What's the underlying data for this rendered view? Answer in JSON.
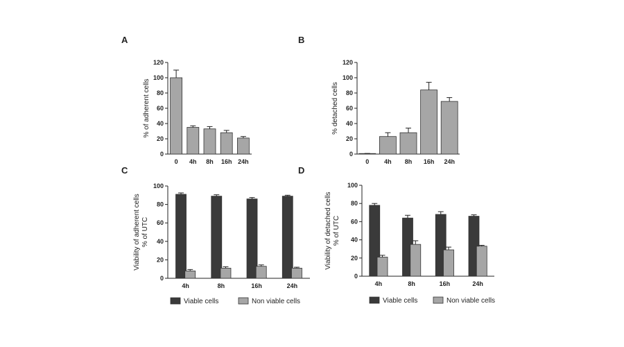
{
  "colors": {
    "light_bar": "#a6a6a6",
    "dark_bar": "#3a3a3a",
    "axis": "#222222"
  },
  "chart_data": [
    {
      "panel": "A",
      "type": "bar",
      "categories": [
        "0",
        "4h",
        "8h",
        "16h",
        "24h"
      ],
      "series": [
        {
          "values": [
            100,
            35,
            33,
            28,
            21
          ],
          "errors": [
            10,
            2,
            3,
            3,
            2
          ]
        }
      ],
      "ylabel": "% of adherent cells",
      "ylim": [
        0,
        120
      ],
      "yticks": [
        0,
        20,
        40,
        60,
        80,
        100,
        120
      ],
      "legend": null
    },
    {
      "panel": "B",
      "type": "bar",
      "categories": [
        "0",
        "4h",
        "8h",
        "16h",
        "24h"
      ],
      "series": [
        {
          "values": [
            0.5,
            23,
            28,
            84,
            69
          ],
          "errors": [
            0.3,
            5,
            6,
            10,
            5
          ]
        }
      ],
      "ylabel": "% detached cells",
      "ylim": [
        0,
        120
      ],
      "yticks": [
        0,
        20,
        40,
        60,
        80,
        100,
        120
      ],
      "legend": null
    },
    {
      "panel": "C",
      "type": "bar",
      "categories": [
        "4h",
        "8h",
        "16h",
        "24h"
      ],
      "series": [
        {
          "name": "Viable cells",
          "values": [
            91,
            89,
            86,
            89
          ],
          "errors": [
            1.5,
            1.5,
            1.5,
            1
          ]
        },
        {
          "name": "Non viable cells",
          "values": [
            8,
            11,
            13,
            11
          ],
          "errors": [
            1.5,
            1.5,
            1.5,
            1
          ]
        }
      ],
      "ylabel": [
        "Viability of adherent cells",
        "% of UTC"
      ],
      "ylim": [
        0,
        100
      ],
      "yticks": [
        0,
        20,
        40,
        60,
        80,
        100
      ],
      "legend": "bottom"
    },
    {
      "panel": "D",
      "type": "bar",
      "categories": [
        "4h",
        "8h",
        "16h",
        "24h"
      ],
      "series": [
        {
          "name": "Viable cells",
          "values": [
            78,
            64,
            68,
            66
          ],
          "errors": [
            2,
            3,
            3,
            1.5
          ]
        },
        {
          "name": "Non viable cells",
          "values": [
            21,
            35,
            29,
            33
          ],
          "errors": [
            2,
            4,
            3,
            1
          ]
        }
      ],
      "ylabel": [
        "Viability of detached cells",
        "% of UTC"
      ],
      "ylim": [
        0,
        100
      ],
      "yticks": [
        0,
        20,
        40,
        60,
        80,
        100
      ],
      "legend": "bottom"
    }
  ]
}
